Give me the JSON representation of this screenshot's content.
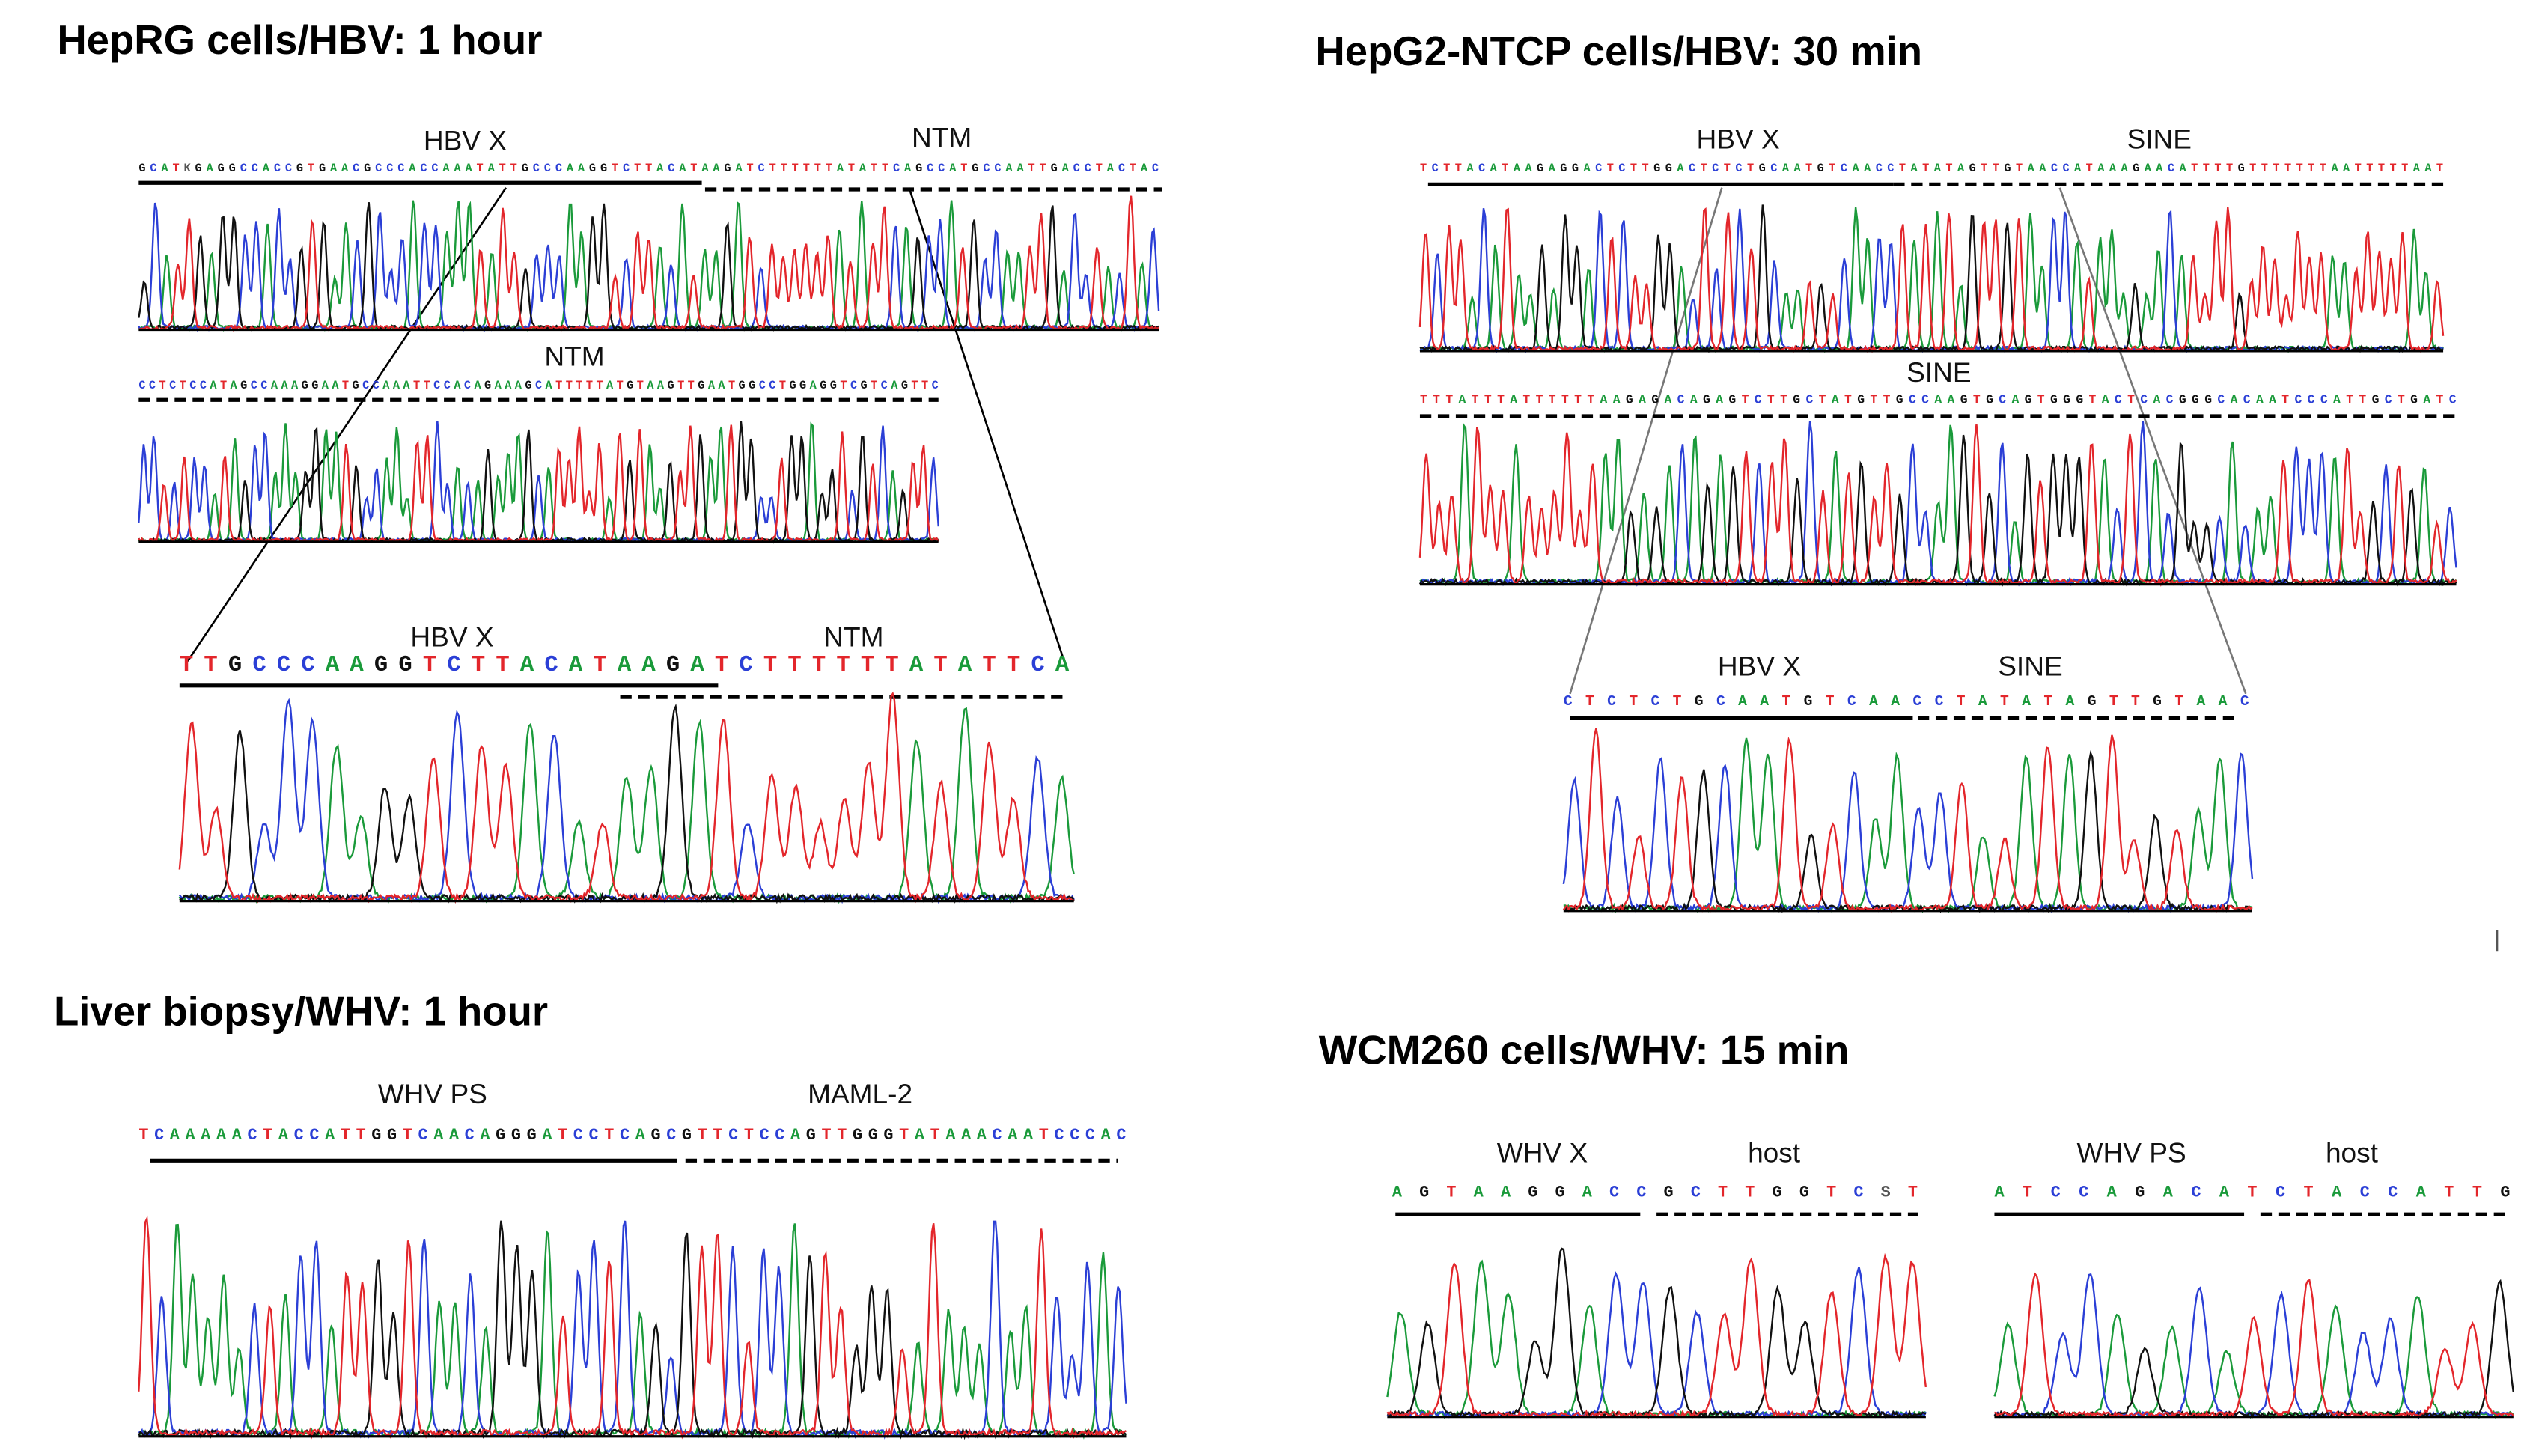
{
  "panels": [
    {
      "title": "HepRG cells/HBV:  1 hour",
      "rows": [
        {
          "labels": [
            "HBV X",
            "NTM"
          ],
          "sequence": "GCATKGAGGCCACCGTGAACGCCCACCAAATATTGCCCAAGGTCTTACATAAGATCTTTTTTATATTCAGCCATGCCAATTGACCTACTAC"
        },
        {
          "labels": [
            "NTM"
          ],
          "sequence": "CCTCTCCATAGCCAAAGGAATGCCAAATTCCACAGAAAGCATTTTTATGTAAGTTGAATGGCCTGGAGGTCGTCAGTTC"
        },
        {
          "labels": [
            "HBV X",
            "NTM"
          ],
          "sequence": "TTGCCCAAGGTCTTACATAAGATCTTTTTTATATTCA"
        }
      ]
    },
    {
      "title": "HepG2-NTCP  cells/HBV:  30 min",
      "rows": [
        {
          "labels": [
            "HBV X",
            "SINE"
          ],
          "sequence": "TCTTACATAAGAGGACTCTTGGACTCTCTGCAATGTCAACCTATATAGTTGTAACCATAAAGAACATTTTGTTTTTTTAATTTTTAAT"
        },
        {
          "labels": [
            "SINE"
          ],
          "sequence": "TTTATTTATTTTTTAAGAGACAGAGTCTTGCTATGTTGCCAAGTGCAGTGGGTACTCACGGGCACAATCCCATTGCTGATC"
        },
        {
          "labels": [
            "HBV X",
            "SINE"
          ],
          "sequence": "CTCTCTGCAATGTCAACCTATATAGTTGTAAC"
        }
      ]
    },
    {
      "title": "Liver biopsy/WHV:  1 hour",
      "rows": [
        {
          "labels": [
            "WHV PS",
            "MAML-2"
          ],
          "sequence": "TCAAAAACTACCATTGGTCAACAGGGATCCTCAGCGTTCTCCAGTTGGGTATAAACAATCCCAC"
        }
      ]
    },
    {
      "title": "WCM260 cells/WHV:  15 min",
      "rows": [
        {
          "labels": [
            "WHV X",
            "host"
          ],
          "sequence": "AGTAAGGACCGCTTGGTCST"
        },
        {
          "labels": [
            "WHV PS",
            "host"
          ],
          "sequence": "ATCCAGACATCTACCATTG"
        }
      ]
    }
  ]
}
